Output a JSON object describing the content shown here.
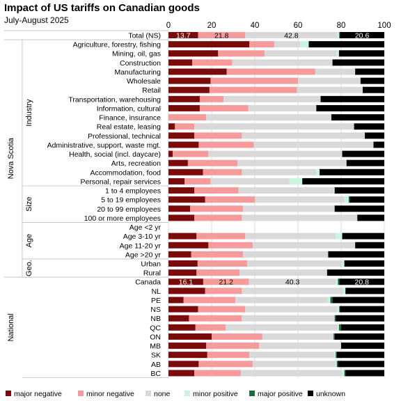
{
  "title": "Impact of US tariffs on Canadian goods",
  "subtitle": "July-August 2025",
  "chart_data": {
    "type": "bar",
    "orientation": "horizontal",
    "stacked": true,
    "title": "Impact of US tariffs on Canadian goods",
    "subtitle": "July-August 2025",
    "xlim": [
      0,
      100
    ],
    "x_ticks": [
      "0",
      "20",
      "40",
      "60",
      "80",
      "100"
    ],
    "legend_position": "bottom",
    "series": [
      {
        "name": "major negative",
        "color": "#7b0a0a"
      },
      {
        "name": "minor negative",
        "color": "#f59b9b"
      },
      {
        "name": "none",
        "color": "#d9d9d9"
      },
      {
        "name": "minor positive",
        "color": "#c8f5e0"
      },
      {
        "name": "major positive",
        "color": "#1a6b3a"
      },
      {
        "name": "unknown",
        "color": "#000000"
      }
    ],
    "groups": [
      {
        "label": "",
        "rows": [
          {
            "label": "Total (NS)",
            "values": [
              13.7,
              21.8,
              42.8,
              0.8,
              0.3,
              20.6
            ],
            "data_labels": [
              "13.7",
              "21.8",
              "42.8",
              "",
              "",
              "20.6"
            ]
          }
        ]
      },
      {
        "label": "Industry",
        "outer": "Nova Scotia",
        "rows": [
          {
            "label": "Agriculture, forestry, fishing",
            "values": [
              37.5,
              11.5,
              12,
              4,
              0,
              35
            ]
          },
          {
            "label": "Mining, oil, gas",
            "values": [
              23,
              21.5,
              33.5,
              1,
              0,
              21
            ]
          },
          {
            "label": "Construction",
            "values": [
              11,
              18.5,
              46.5,
              0,
              0,
              24
            ]
          },
          {
            "label": "Manufacturing",
            "values": [
              27,
              41,
              18.5,
              0,
              0,
              13.5
            ]
          },
          {
            "label": "Wholesale",
            "values": [
              19.5,
              40.5,
              29,
              0,
              0,
              11
            ]
          },
          {
            "label": "Retail",
            "values": [
              19,
              40.5,
              30.5,
              0,
              0,
              10
            ]
          },
          {
            "label": "Transportation, warehousing",
            "values": [
              14.5,
              11,
              45,
              0,
              0,
              29.5
            ]
          },
          {
            "label": "Information, cultural",
            "values": [
              14.5,
              22.5,
              31.5,
              0,
              0,
              31.5
            ]
          },
          {
            "label": "Finance, insurance",
            "values": [
              0,
              17.5,
              58,
              0,
              0,
              24.5
            ]
          },
          {
            "label": "Real estate, leasing",
            "values": [
              3,
              9,
              74,
              0,
              0,
              14
            ]
          },
          {
            "label": "Professional, technical",
            "values": [
              12,
              22,
              57,
              0,
              0,
              9
            ]
          },
          {
            "label": "Administrative, support, waste mgt.",
            "values": [
              14,
              25.5,
              55.5,
              0,
              0,
              5
            ]
          },
          {
            "label": "Health, social (incl. daycare)",
            "values": [
              2,
              16.5,
              62,
              0,
              0,
              19.5
            ]
          },
          {
            "label": "Arts, recreation",
            "values": [
              9,
              23,
              50.5,
              0,
              0,
              17.5
            ]
          },
          {
            "label": "Accommodation, food",
            "values": [
              16,
              18,
              34.5,
              1.5,
              0,
              30
            ]
          },
          {
            "label": "Personal, repair services",
            "values": [
              7.5,
              12,
              36.5,
              6,
              0,
              38
            ]
          }
        ]
      },
      {
        "label": "Size",
        "outer": "Nova Scotia",
        "rows": [
          {
            "label": "1 to 4 employees",
            "values": [
              12,
              20.5,
              44,
              0.5,
              0,
              23
            ]
          },
          {
            "label": "5 to 19 employees",
            "values": [
              17,
              23,
              41.5,
              2,
              0.5,
              16
            ]
          },
          {
            "label": "20 to 99 employees",
            "values": [
              10,
              24.5,
              42.5,
              0,
              0,
              23
            ]
          },
          {
            "label": "100 or more employees",
            "values": [
              12,
              22,
              53.5,
              0,
              0,
              12.5
            ]
          }
        ]
      },
      {
        "label": "Age",
        "outer": "Nova Scotia",
        "rows": [
          {
            "label": "Age <2 yr",
            "values": [
              0,
              0,
              0,
              0,
              0,
              0
            ]
          },
          {
            "label": "Age 3-10 yr",
            "values": [
              13,
              22.5,
              42,
              3,
              0,
              19.5
            ]
          },
          {
            "label": "Age 11-20 yr",
            "values": [
              18.5,
              20.5,
              47.5,
              0,
              0,
              13.5
            ]
          },
          {
            "label": "Age >20 yr",
            "values": [
              10.5,
              24,
              39.5,
              0,
              0,
              26
            ]
          }
        ]
      },
      {
        "label": "Geo.",
        "outer": "Nova Scotia",
        "rows": [
          {
            "label": "Urban",
            "values": [
              13.5,
              23,
              44,
              1,
              0,
              18.5
            ]
          },
          {
            "label": "Rural",
            "values": [
              13,
              20,
              40.5,
              0,
              0,
              26.5
            ]
          }
        ]
      },
      {
        "label": "",
        "outer": "National",
        "rows": [
          {
            "label": "Canada",
            "values": [
              16.1,
              21.2,
              40.3,
              0.9,
              0.7,
              20.8
            ],
            "data_labels": [
              "16.1",
              "21.2",
              "40.3",
              "",
              "",
              "20.8"
            ]
          },
          {
            "label": "NL",
            "values": [
              17,
              17,
              47,
              1,
              0,
              18
            ]
          },
          {
            "label": "PE",
            "values": [
              7,
              24,
              43,
              1,
              1,
              24
            ]
          },
          {
            "label": "NS",
            "values": [
              13.7,
              21.8,
              42.8,
              0.8,
              0.3,
              20.6
            ]
          },
          {
            "label": "NB",
            "values": [
              9.5,
              24.5,
              43,
              0,
              0.5,
              22.5
            ]
          },
          {
            "label": "QC",
            "values": [
              12.5,
              14,
              52,
              0.5,
              1,
              20
            ]
          },
          {
            "label": "ON",
            "values": [
              20,
              23.5,
              33,
              0,
              0.5,
              23
            ]
          },
          {
            "label": "MB",
            "values": [
              17.5,
              24.5,
              38,
              0,
              0,
              20
            ]
          },
          {
            "label": "SK",
            "values": [
              18,
              19.5,
              39.5,
              0.5,
              0.5,
              22
            ]
          },
          {
            "label": "AB",
            "values": [
              14,
              25,
              38.5,
              0.5,
              0.5,
              21.5
            ]
          },
          {
            "label": "BC",
            "values": [
              12,
              21.5,
              47,
              1,
              0.5,
              18
            ]
          }
        ]
      }
    ]
  }
}
